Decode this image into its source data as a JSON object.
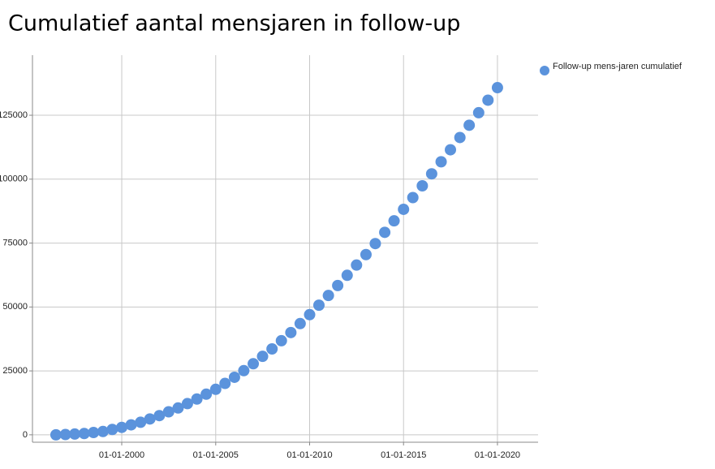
{
  "chart_data": {
    "type": "scatter",
    "title": "Cumulatief aantal mensjaren in follow-up",
    "series": [
      {
        "name": "Follow-up mens-jaren cumulatief",
        "color": "#5b93dc",
        "x": [
          "1996-07-01",
          "1997-01-01",
          "1997-07-01",
          "1998-01-01",
          "1998-07-01",
          "1999-01-01",
          "1999-07-01",
          "2000-01-01",
          "2000-07-01",
          "2001-01-01",
          "2001-07-01",
          "2002-01-01",
          "2002-07-01",
          "2003-01-01",
          "2003-07-01",
          "2004-01-01",
          "2004-07-01",
          "2005-01-01",
          "2005-07-01",
          "2006-01-01",
          "2006-07-01",
          "2007-01-01",
          "2007-07-01",
          "2008-01-01",
          "2008-07-01",
          "2009-01-01",
          "2009-07-01",
          "2010-01-01",
          "2010-07-01",
          "2011-01-01",
          "2011-07-01",
          "2012-01-01",
          "2012-07-01",
          "2013-01-01",
          "2013-07-01",
          "2014-01-01",
          "2014-07-01",
          "2015-01-01",
          "2015-07-01",
          "2016-01-01",
          "2016-07-01",
          "2017-01-01",
          "2017-07-01",
          "2018-01-01",
          "2018-07-01",
          "2019-01-01",
          "2019-07-01",
          "2020-01-01"
        ],
        "values": [
          0,
          100,
          300,
          500,
          900,
          1300,
          2100,
          2900,
          3900,
          4900,
          6200,
          7500,
          9000,
          10500,
          12200,
          14000,
          15900,
          17800,
          20100,
          22500,
          25100,
          27800,
          30700,
          33600,
          36800,
          40000,
          43500,
          47000,
          50700,
          54500,
          58400,
          62400,
          66400,
          70500,
          74800,
          79200,
          83700,
          88200,
          92800,
          97400,
          102100,
          106800,
          111500,
          116300,
          121100,
          126000,
          130900,
          135800
        ]
      }
    ],
    "xlim": [
      "1995-04-01",
      "2022-03-01"
    ],
    "xticks": [
      {
        "value": "2000-01-01",
        "label": "01-01-2000"
      },
      {
        "value": "2005-01-01",
        "label": "01-01-2005"
      },
      {
        "value": "2010-01-01",
        "label": "01-01-2010"
      },
      {
        "value": "2015-01-01",
        "label": "01-01-2015"
      },
      {
        "value": "2020-01-01",
        "label": "01-01-2020"
      }
    ],
    "ylim": [
      -2900,
      148500
    ],
    "yticks": [
      0,
      25000,
      50000,
      75000,
      100000,
      125000
    ],
    "grid": true,
    "legend": "right"
  }
}
